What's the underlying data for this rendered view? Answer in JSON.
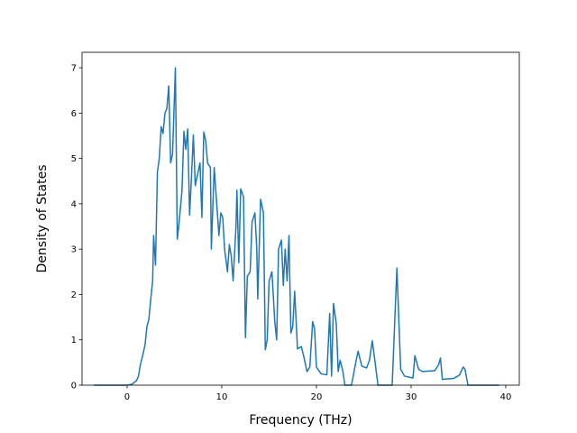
{
  "chart_data": {
    "type": "line",
    "xlabel": "Frequency (THz)",
    "ylabel": "Density of States",
    "xlim": [
      -4.76,
      41.43
    ],
    "ylim": [
      0,
      7.34
    ],
    "xticks": [
      0,
      10,
      20,
      30,
      40
    ],
    "yticks": [
      0,
      1,
      2,
      3,
      4,
      5,
      6,
      7
    ],
    "series": [
      {
        "color": "#1f77b4",
        "x": [
          -3.5,
          0,
          0.5,
          1,
          1.2,
          1.4,
          1.7,
          1.9,
          2.1,
          2.3,
          2.5,
          2.7,
          2.8,
          3.0,
          3.2,
          3.4,
          3.6,
          3.8,
          4.0,
          4.2,
          4.4,
          4.6,
          4.8,
          5.1,
          5.3,
          5.5,
          5.8,
          6.0,
          6.2,
          6.4,
          6.6,
          6.8,
          7.0,
          7.2,
          7.4,
          7.7,
          7.9,
          8.1,
          8.3,
          8.5,
          8.8,
          8.9,
          9.2,
          9.4,
          9.7,
          9.9,
          10.1,
          10.3,
          10.6,
          10.8,
          11.0,
          11.2,
          11.5,
          11.6,
          11.8,
          12.0,
          12.3,
          12.5,
          12.7,
          13.0,
          13.2,
          13.5,
          13.7,
          13.8,
          14.1,
          14.4,
          14.6,
          14.8,
          15.0,
          15.3,
          15.6,
          15.8,
          16.0,
          16.3,
          16.5,
          16.7,
          16.9,
          17.1,
          17.3,
          17.5,
          17.7,
          18.0,
          18.4,
          18.7,
          19.0,
          19.3,
          19.6,
          19.8,
          20.0,
          20.5,
          21.1,
          21.4,
          21.6,
          21.8,
          22.1,
          22.3,
          22.5,
          22.8,
          23.0,
          23.7,
          24.2,
          24.4,
          24.8,
          25.3,
          25.6,
          25.9,
          26.2,
          26.5,
          28.0,
          28.5,
          28.9,
          29.3,
          30.2,
          30.4,
          30.8,
          31.2,
          32.5,
          32.9,
          33.1,
          33.3,
          34.5,
          35.1,
          35.5,
          35.7,
          36.0,
          39.3
        ],
        "values": [
          0,
          0,
          0.02,
          0.1,
          0.2,
          0.45,
          0.7,
          0.9,
          1.3,
          1.45,
          1.9,
          2.3,
          3.3,
          2.65,
          4.7,
          5.0,
          5.7,
          5.55,
          6.0,
          6.1,
          6.6,
          4.9,
          5.1,
          7.0,
          3.22,
          3.6,
          4.3,
          5.6,
          5.2,
          5.65,
          3.75,
          4.6,
          5.52,
          4.4,
          4.6,
          4.9,
          3.7,
          5.58,
          5.4,
          4.9,
          4.8,
          3.0,
          4.8,
          4.2,
          3.3,
          3.8,
          3.7,
          3.0,
          2.5,
          3.1,
          2.85,
          2.3,
          3.5,
          4.3,
          2.7,
          4.33,
          4.15,
          1.05,
          2.4,
          2.5,
          3.6,
          3.8,
          3.0,
          1.9,
          4.1,
          3.8,
          0.78,
          1.0,
          2.3,
          2.5,
          1.4,
          1.0,
          3.0,
          3.2,
          2.2,
          3.0,
          2.3,
          3.3,
          1.15,
          1.3,
          2.07,
          0.8,
          0.85,
          0.6,
          0.3,
          0.4,
          1.4,
          1.25,
          0.4,
          0.25,
          0.23,
          1.58,
          0.2,
          1.8,
          1.35,
          0.3,
          0.55,
          0.3,
          0,
          0,
          0.55,
          0.75,
          0.42,
          0.38,
          0.55,
          0.98,
          0.5,
          0,
          0,
          2.58,
          0.35,
          0.2,
          0.16,
          0.65,
          0.35,
          0.3,
          0.32,
          0.45,
          0.6,
          0.13,
          0.15,
          0.22,
          0.4,
          0.35,
          0,
          0
        ]
      }
    ]
  }
}
